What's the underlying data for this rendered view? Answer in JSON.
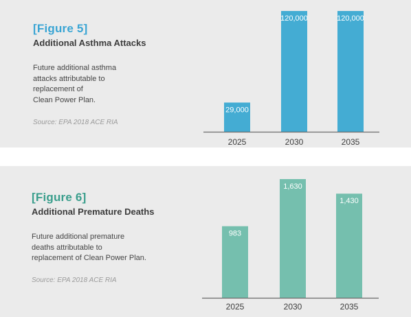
{
  "figures": [
    {
      "number": "[Figure 5]",
      "title": "Additional Asthma Attacks",
      "description_lines": [
        "Future additional asthma",
        "attacks attributable to",
        "replacement of",
        "Clean Power Plan."
      ],
      "source": "Source: EPA 2018 ACE RIA",
      "color": "#44acd3"
    },
    {
      "number": "[Figure 6]",
      "title": "Additional Premature Deaths",
      "description_lines": [
        "Future additional premature",
        "deaths attributable to",
        "replacement of Clean Power Plan."
      ],
      "source": "Source: EPA 2018 ACE RIA",
      "color": "#75bfae"
    }
  ],
  "chart_data": [
    {
      "type": "bar",
      "title": "Additional Asthma Attacks",
      "categories": [
        "2025",
        "2030",
        "2035"
      ],
      "values": [
        29000,
        120000,
        120000
      ],
      "value_labels": [
        "29,000",
        "120,000",
        "120,000"
      ],
      "ylim": [
        0,
        120000
      ],
      "grid": false,
      "color": "#44acd3"
    },
    {
      "type": "bar",
      "title": "Additional Premature Deaths",
      "categories": [
        "2025",
        "2030",
        "2035"
      ],
      "values": [
        983,
        1630,
        1430
      ],
      "value_labels": [
        "983",
        "1,630",
        "1,430"
      ],
      "ylim": [
        0,
        1630
      ],
      "grid": false,
      "color": "#75bfae"
    }
  ]
}
